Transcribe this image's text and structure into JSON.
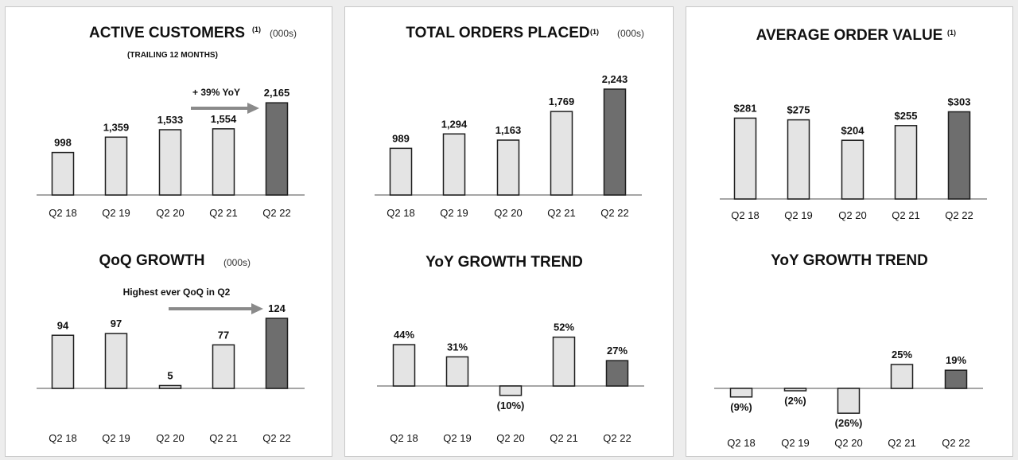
{
  "colors": {
    "bar_light": "#e4e4e4",
    "bar_dark": "#6e6e6e",
    "bar_stroke": "#1e1e1e",
    "baseline": "#a6a6a6",
    "arrow": "#8a8a8a"
  },
  "charts": [
    {
      "title": "ACTIVE CUSTOMERS",
      "superscript": "(1)",
      "units": "(000s)",
      "subtitle": "(TRAILING 12 MONTHS)",
      "annotation": "+ 39% YoY",
      "data_labels": [
        "998",
        "1,359",
        "1,533",
        "1,554",
        "2,165"
      ]
    },
    {
      "title": "TOTAL ORDERS PLACED",
      "superscript": "(1)",
      "units": "(000s)",
      "data_labels": [
        "989",
        "1,294",
        "1,163",
        "1,769",
        "2,243"
      ]
    },
    {
      "title": "AVERAGE ORDER VALUE",
      "superscript": "(1)",
      "data_labels": [
        "$281",
        "$275",
        "$204",
        "$255",
        "$303"
      ]
    },
    {
      "title": "QoQ GROWTH",
      "units": "(000s)",
      "annotation": "Highest ever QoQ in Q2",
      "data_labels": [
        "94",
        "97",
        "5",
        "77",
        "124"
      ]
    },
    {
      "title": "YoY GROWTH TREND",
      "data_labels": [
        "44%",
        "31%",
        "(10%)",
        "52%",
        "27%"
      ]
    },
    {
      "title": "YoY GROWTH TREND",
      "data_labels": [
        "(9%)",
        "(2%)",
        "(26%)",
        "25%",
        "19%"
      ]
    }
  ],
  "chart_data": [
    {
      "type": "bar",
      "title": "ACTIVE CUSTOMERS (000s)",
      "subtitle": "(TRAILING 12 MONTHS)",
      "categories": [
        "Q2 18",
        "Q2 19",
        "Q2 20",
        "Q2 21",
        "Q2 22"
      ],
      "values": [
        998,
        1359,
        1533,
        1554,
        2165
      ],
      "highlight_index": 4,
      "annotation": "+ 39% YoY"
    },
    {
      "type": "bar",
      "title": "TOTAL ORDERS PLACED (000s)",
      "categories": [
        "Q2 18",
        "Q2 19",
        "Q2 20",
        "Q2 21",
        "Q2 22"
      ],
      "values": [
        989,
        1294,
        1163,
        1769,
        2243
      ],
      "highlight_index": 4
    },
    {
      "type": "bar",
      "title": "AVERAGE ORDER VALUE",
      "categories": [
        "Q2 18",
        "Q2 19",
        "Q2 20",
        "Q2 21",
        "Q2 22"
      ],
      "values": [
        281,
        275,
        204,
        255,
        303
      ],
      "highlight_index": 4
    },
    {
      "type": "bar",
      "title": "QoQ GROWTH (000s)",
      "categories": [
        "Q2 18",
        "Q2 19",
        "Q2 20",
        "Q2 21",
        "Q2 22"
      ],
      "values": [
        94,
        97,
        5,
        77,
        124
      ],
      "highlight_index": 4,
      "annotation": "Highest ever QoQ in Q2"
    },
    {
      "type": "bar",
      "title": "YoY GROWTH TREND",
      "categories": [
        "Q2 18",
        "Q2 19",
        "Q2 20",
        "Q2 21",
        "Q2 22"
      ],
      "values": [
        44,
        31,
        -10,
        52,
        27
      ],
      "highlight_index": 4
    },
    {
      "type": "bar",
      "title": "YoY GROWTH TREND",
      "categories": [
        "Q2 18",
        "Q2 19",
        "Q2 20",
        "Q2 21",
        "Q2 22"
      ],
      "values": [
        -9,
        -2,
        -26,
        25,
        19
      ],
      "highlight_index": 4
    }
  ]
}
